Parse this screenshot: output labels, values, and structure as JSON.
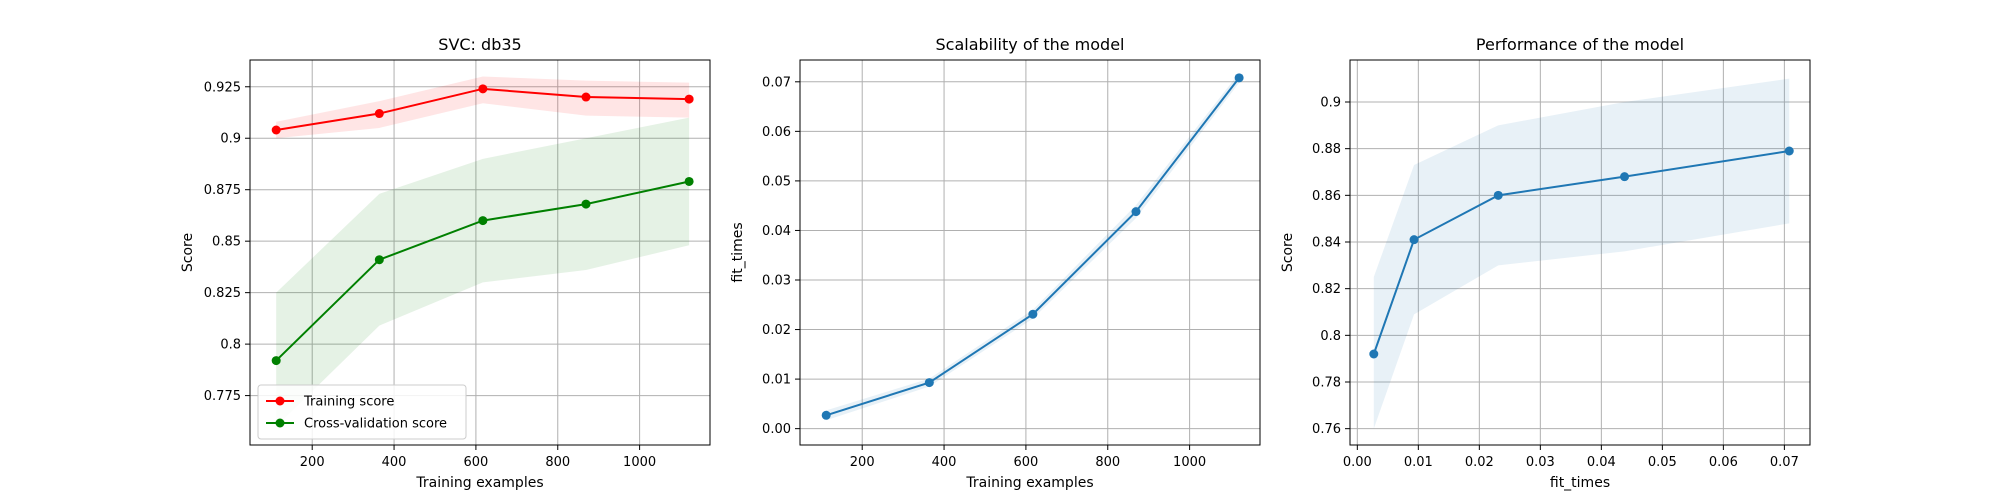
{
  "chart_data": [
    {
      "type": "line",
      "title": "SVC: db35",
      "xlabel": "Training examples",
      "ylabel": "Score",
      "xlim": [
        48,
        1172
      ],
      "ylim": [
        0.751,
        0.938
      ],
      "xticks": [
        200,
        400,
        600,
        800,
        1000
      ],
      "yticks": [
        0.775,
        0.8,
        0.825,
        0.85,
        0.875,
        0.9,
        0.925
      ],
      "grid": true,
      "legend": "lower-left",
      "series": [
        {
          "name": "Training score",
          "color": "#ff0000",
          "x": [
            112,
            364,
            617,
            869,
            1121
          ],
          "y": [
            0.904,
            0.912,
            0.924,
            0.92,
            0.919
          ],
          "lower": [
            0.9,
            0.905,
            0.917,
            0.911,
            0.91
          ],
          "upper": [
            0.908,
            0.918,
            0.93,
            0.928,
            0.927
          ]
        },
        {
          "name": "Cross-validation score",
          "color": "#008000",
          "x": [
            112,
            364,
            617,
            869,
            1121
          ],
          "y": [
            0.792,
            0.841,
            0.86,
            0.868,
            0.879
          ],
          "lower": [
            0.76,
            0.809,
            0.83,
            0.836,
            0.848
          ],
          "upper": [
            0.825,
            0.873,
            0.89,
            0.9,
            0.91
          ]
        }
      ]
    },
    {
      "type": "line",
      "title": "Scalability of the model",
      "xlabel": "Training examples",
      "ylabel": "fit_times",
      "xlim": [
        48,
        1172
      ],
      "ylim": [
        -0.0033,
        0.0744
      ],
      "xticks": [
        200,
        400,
        600,
        800,
        1000
      ],
      "yticks": [
        0,
        0.01,
        0.02,
        0.03,
        0.04,
        0.05,
        0.06,
        0.07
      ],
      "ytick_labels": [
        "0.00",
        "0.01",
        "0.02",
        "0.03",
        "0.04",
        "0.05",
        "0.06",
        "0.07"
      ],
      "grid": true,
      "series": [
        {
          "color": "#1f77b4",
          "x": [
            112,
            364,
            617,
            869,
            1121
          ],
          "y": [
            0.0027,
            0.0093,
            0.0231,
            0.0438,
            0.0708
          ],
          "lower": [
            0.0017,
            0.0085,
            0.0222,
            0.0425,
            0.0698
          ],
          "upper": [
            0.0037,
            0.0101,
            0.024,
            0.0451,
            0.0718
          ]
        }
      ]
    },
    {
      "type": "line",
      "title": "Performance of the model",
      "xlabel": "fit_times",
      "ylabel": "Score",
      "xlim": [
        -0.0012,
        0.0742
      ],
      "ylim": [
        0.753,
        0.918
      ],
      "xticks": [
        0,
        0.01,
        0.02,
        0.03,
        0.04,
        0.05,
        0.06,
        0.07
      ],
      "xtick_labels": [
        "0.00",
        "0.01",
        "0.02",
        "0.03",
        "0.04",
        "0.05",
        "0.06",
        "0.07"
      ],
      "yticks": [
        0.76,
        0.78,
        0.8,
        0.82,
        0.84,
        0.86,
        0.88,
        0.9
      ],
      "grid": true,
      "series": [
        {
          "color": "#1f77b4",
          "x": [
            0.0027,
            0.0093,
            0.0231,
            0.0438,
            0.0708
          ],
          "y": [
            0.792,
            0.841,
            0.86,
            0.868,
            0.879
          ],
          "lower": [
            0.76,
            0.809,
            0.83,
            0.836,
            0.848
          ],
          "upper": [
            0.825,
            0.873,
            0.89,
            0.9,
            0.91
          ]
        }
      ]
    }
  ]
}
